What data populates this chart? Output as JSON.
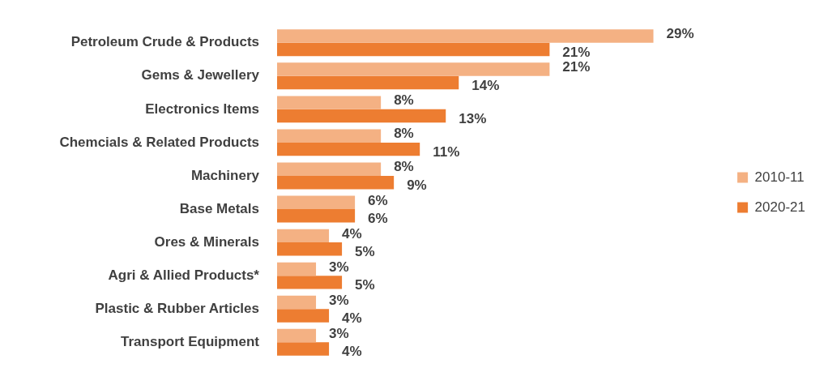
{
  "chart_data": {
    "type": "bar",
    "orientation": "horizontal",
    "categories": [
      "Petroleum Crude & Products",
      "Gems & Jewellery",
      "Electronics Items",
      "Chemcials & Related Products",
      "Machinery",
      "Base Metals",
      "Ores & Minerals",
      "Agri & Allied Products*",
      "Plastic & Rubber Articles",
      "Transport Equipment"
    ],
    "series": [
      {
        "name": "2010-11",
        "color": "#f4b183",
        "values": [
          29,
          21,
          8,
          8,
          8,
          6,
          4,
          3,
          3,
          3
        ],
        "value_labels": [
          "29%",
          "21%",
          "8%",
          "8%",
          "8%",
          "6%",
          "4%",
          "3%",
          "3%",
          "3%"
        ]
      },
      {
        "name": "2020-21",
        "color": "#ed7d31",
        "values": [
          21,
          14,
          13,
          11,
          9,
          6,
          5,
          5,
          4,
          4
        ],
        "value_labels": [
          "21%",
          "14%",
          "13%",
          "11%",
          "9%",
          "6%",
          "5%",
          "5%",
          "4%",
          "4%"
        ]
      }
    ],
    "legend": "right"
  }
}
